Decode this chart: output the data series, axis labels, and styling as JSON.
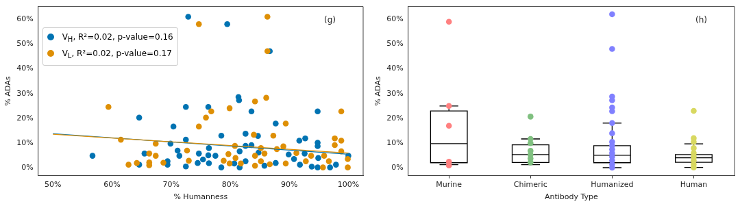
{
  "chart_data": [
    {
      "type": "scatter",
      "xlabel": "% Humanness",
      "ylabel": "% ADAs",
      "annotations": [
        "(g)"
      ],
      "legend": "top left",
      "marker": "circle",
      "grid": false,
      "xlim": [
        47.5,
        102.5
      ],
      "xticks": [
        {
          "value": 50,
          "label": "50%"
        },
        {
          "value": 60,
          "label": "60%"
        },
        {
          "value": 70,
          "label": "70%"
        },
        {
          "value": 80,
          "label": "80%"
        },
        {
          "value": 90,
          "label": "90%"
        },
        {
          "value": 100,
          "label": "100%"
        }
      ],
      "ylim": [
        -3.1,
        65.1
      ],
      "yticks": [
        {
          "value": 0,
          "label": "0%"
        },
        {
          "value": 10,
          "label": "10%"
        },
        {
          "value": 20,
          "label": "20%"
        },
        {
          "value": 30,
          "label": "30%"
        },
        {
          "value": 40,
          "label": "40%"
        },
        {
          "value": 50,
          "label": "50%"
        },
        {
          "value": 60,
          "label": "60%"
        }
      ],
      "series": [
        {
          "name": "V$_{H}$, R²=0.02, p-value=0.16",
          "color": "#0173b2",
          "x": [
            72.9,
            79.5,
            56.7,
            64.6,
            64.6,
            65.5,
            69.4,
            69.4,
            69.9,
            70.4,
            72.5,
            72.5,
            71.1,
            71.4,
            72.5,
            74.7,
            74.5,
            75.4,
            76.3,
            76.4,
            76.3,
            76.4,
            77.5,
            78.5,
            78.5,
            81.4,
            81.5,
            81.6,
            80.7,
            81.6,
            86.7,
            83.6,
            87.7,
            94.8,
            82.6,
            84.7,
            91.7,
            92.7,
            94.8,
            94.8,
            82.6,
            83.6,
            84.8,
            89.9,
            92.6,
            94.9,
            100,
            90.8,
            82.6,
            85.8,
            87.7,
            91.8,
            93.8,
            94.8,
            96.9,
            97.9
          ],
          "values": [
            61,
            58,
            4.9,
            20.3,
            1.3,
            5.8,
            2.7,
            1.3,
            9.8,
            16.7,
            24.6,
            11.4,
            7,
            4.9,
            0.6,
            5.8,
            2,
            3.4,
            24.6,
            8,
            5.1,
            1.9,
            4.9,
            13,
            0.2,
            28.6,
            27.3,
            6.7,
            1.8,
            0.2,
            47.1,
            22.8,
            17.9,
            22.8,
            13.8,
            12.9,
            11,
            11.9,
            10.2,
            8.8,
            8.9,
            9.2,
            6.2,
            5.4,
            5.8,
            4,
            4.9,
            3.6,
            2.7,
            0.9,
            2,
            1.3,
            0.5,
            0.2,
            0.2,
            1.3
          ]
        },
        {
          "name": "V$_{L}$, R²=0.02, p-value=0.17",
          "color": "#de8f05",
          "x": [
            74.7,
            59.4,
            61.5,
            62.8,
            64.2,
            66.3,
            66.3,
            66.3,
            67.4,
            67.4,
            68.7,
            72.7,
            73,
            74.7,
            75.9,
            76.8,
            79.9,
            78.9,
            79.7,
            79.9,
            80.9,
            80.8,
            81.8,
            86.3,
            86.3,
            86.1,
            84.2,
            89.4,
            98.8,
            84,
            87.3,
            85.2,
            87.9,
            89,
            97.7,
            97.7,
            98.8,
            98.8,
            84.2,
            85.8,
            91.2,
            93.7,
            95.9,
            85.2,
            86.7,
            84.2,
            89.4,
            92.8,
            95.7,
            96.7,
            99.9,
            99.9
          ],
          "values": [
            58,
            24.6,
            11.4,
            1.3,
            2,
            5.8,
            2.2,
            1.1,
            9.8,
            4.9,
            2.1,
            7,
            2.9,
            16.7,
            20.3,
            22.8,
            24.1,
            2.9,
            5.6,
            1.8,
            4,
            8.9,
            1.8,
            61,
            47.1,
            28.3,
            26.8,
            17.9,
            22.8,
            13.4,
            13,
            8,
            7.6,
            8.7,
            11.9,
            9.2,
            11,
            6.7,
            4.9,
            5.8,
            6,
            4.9,
            4.9,
            2.7,
            1.5,
            0.9,
            1.8,
            2.7,
            0.2,
            2.7,
            3.6,
            0.2
          ]
        },
        {
          "type": "line",
          "marker": "none",
          "color": "#0173b2",
          "x": [
            50,
            100
          ],
          "values": [
            13.8,
            5.5
          ]
        },
        {
          "type": "line",
          "marker": "none",
          "color": "#de8f05",
          "x": [
            50,
            100
          ],
          "values": [
            13.6,
            6.0
          ]
        }
      ]
    },
    {
      "type": "box",
      "xlabel": "Antibody Type",
      "ylabel": "% ADAs",
      "annotations": [
        "(h)"
      ],
      "grid": false,
      "color": "#000000",
      "categories": [
        "Murine",
        "Chimeric",
        "Humanized",
        "Human"
      ],
      "ylim": [
        -3.1,
        65.1
      ],
      "yticks": [
        {
          "value": 0,
          "label": "0%"
        },
        {
          "value": 10,
          "label": "10%"
        },
        {
          "value": 20,
          "label": "20%"
        },
        {
          "value": 30,
          "label": "30%"
        },
        {
          "value": 40,
          "label": "40%"
        },
        {
          "value": 50,
          "label": "50%"
        },
        {
          "value": 60,
          "label": "60%"
        }
      ],
      "boxes": [
        {
          "low": 1.3,
          "q1": 2.1,
          "median": 9.8,
          "q3": 23,
          "high": 25
        },
        {
          "low": 1.3,
          "q1": 2.2,
          "median": 5.4,
          "q3": 9.3,
          "high": 11.7
        },
        {
          "low": 0.1,
          "q1": 2.1,
          "median": 5.1,
          "q3": 9,
          "high": 18.1
        },
        {
          "low": 0.2,
          "q1": 2.3,
          "median": 4.1,
          "q3": 5.4,
          "high": 9.7
        }
      ],
      "series": [
        {
          "type": "scatter",
          "color": "#ff8080",
          "x": [
            "Murine",
            "Murine",
            "Murine",
            "Murine",
            "Murine"
          ],
          "values": [
            59,
            25,
            17,
            2.5,
            1
          ]
        },
        {
          "type": "scatter",
          "color": "#80c080",
          "x": [
            "Chimeric",
            "Chimeric",
            "Chimeric",
            "Chimeric",
            "Chimeric",
            "Chimeric",
            "Chimeric"
          ],
          "values": [
            20.7,
            11.7,
            10,
            6.9,
            5.3,
            3.8,
            2.2
          ]
        },
        {
          "type": "scatter",
          "color": "#8080ff",
          "x": [
            "Humanized",
            "Humanized",
            "Humanized",
            "Humanized",
            "Humanized",
            "Humanized",
            "Humanized",
            "Humanized",
            "Humanized",
            "Humanized",
            "Humanized",
            "Humanized",
            "Humanized",
            "Humanized",
            "Humanized",
            "Humanized"
          ],
          "values": [
            62,
            48,
            28.8,
            27.3,
            24.4,
            22.9,
            18.1,
            14,
            10.5,
            9,
            7.5,
            6,
            4.5,
            3,
            1.5,
            0.1
          ]
        },
        {
          "type": "scatter",
          "color": "#d8d860",
          "x": [
            "Human",
            "Human",
            "Human",
            "Human",
            "Human",
            "Human",
            "Human",
            "Human",
            "Human"
          ],
          "values": [
            23,
            12,
            10.5,
            8,
            6,
            4.5,
            3,
            1.5,
            0.2
          ]
        }
      ]
    }
  ]
}
